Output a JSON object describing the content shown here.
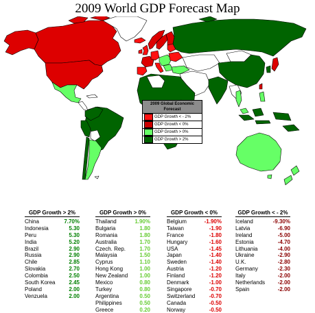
{
  "title": "2009 World GDP Forecast Map",
  "colors": {
    "gt2": "#006400",
    "gt0": "#66ff66",
    "lt0": "#dd0000",
    "ltm2": "#ff1111",
    "nodata": "#ffffff",
    "border": "#000000"
  },
  "legend": {
    "title": "2009 Global Economic Forecast",
    "items": [
      {
        "label": "GDP Growth < - 2%",
        "color": "#ff1111"
      },
      {
        "label": "GDP Growth < 0%",
        "color": "#cc0000"
      },
      {
        "label": "GDP Growth > 0%",
        "color": "#66ff66"
      },
      {
        "label": "GDP Growth > 2%",
        "color": "#006400"
      }
    ]
  },
  "tables": [
    {
      "header": "GDP Growth > 2%",
      "value_color": "#008000",
      "rows": [
        {
          "country": "China",
          "value": "7.70%"
        },
        {
          "country": "Indonesia",
          "value": "5.30"
        },
        {
          "country": "Peru",
          "value": "5.30"
        },
        {
          "country": "India",
          "value": "5.20"
        },
        {
          "country": "Brazil",
          "value": "2.90"
        },
        {
          "country": "Russia",
          "value": "2.90"
        },
        {
          "country": "Chile",
          "value": "2.85"
        },
        {
          "country": "Slovakia",
          "value": "2.70"
        },
        {
          "country": "Colombia",
          "value": "2.50"
        },
        {
          "country": "South Korea",
          "value": "2.45"
        },
        {
          "country": "Poland",
          "value": "2.00"
        },
        {
          "country": "Venzuela",
          "value": "2.00"
        }
      ]
    },
    {
      "header": "GDP Growth > 0%",
      "value_color": "#66cc33",
      "rows": [
        {
          "country": "Thailand",
          "value": "1.90%"
        },
        {
          "country": "Bulgaria",
          "value": "1.80"
        },
        {
          "country": "Romania",
          "value": "1.80"
        },
        {
          "country": "Australia",
          "value": "1.70"
        },
        {
          "country": "Czech. Rep.",
          "value": "1.70"
        },
        {
          "country": "Malaysia",
          "value": "1.50"
        },
        {
          "country": "Cyprus",
          "value": "1.10"
        },
        {
          "country": "Hong Kong",
          "value": "1.00"
        },
        {
          "country": "New Zealand",
          "value": "1.00"
        },
        {
          "country": "Mexico",
          "value": "0.80"
        },
        {
          "country": "Turkey",
          "value": "0.80"
        },
        {
          "country": "Argentina",
          "value": "0.50"
        },
        {
          "country": "Philippines",
          "value": "0.50"
        },
        {
          "country": "Greece",
          "value": "0.20"
        }
      ]
    },
    {
      "header": "GDP Growth < 0%",
      "value_color": "#dd0000",
      "rows": [
        {
          "country": "Belgium",
          "value": "-1.90%"
        },
        {
          "country": "Taiwan",
          "value": "-1.90"
        },
        {
          "country": "France",
          "value": "-1.80"
        },
        {
          "country": "Hungary",
          "value": "-1.60"
        },
        {
          "country": "USA",
          "value": "-1.45"
        },
        {
          "country": "Japan",
          "value": "-1.40"
        },
        {
          "country": "Sweden",
          "value": "-1.40"
        },
        {
          "country": "Austria",
          "value": "-1.20"
        },
        {
          "country": "Finland",
          "value": "-1.20"
        },
        {
          "country": "Denmark",
          "value": "-1.00"
        },
        {
          "country": "Singapore",
          "value": "-0.70"
        },
        {
          "country": "Switzerland",
          "value": "-0.70"
        },
        {
          "country": "Canada",
          "value": "-0.50"
        },
        {
          "country": "Norway",
          "value": "-0.50"
        }
      ]
    },
    {
      "header": "GDP Growth < - 2%",
      "value_color": "#8b0000",
      "rows": [
        {
          "country": "Iceland",
          "value": "-9.30%"
        },
        {
          "country": "Latvia",
          "value": "-6.90"
        },
        {
          "country": "Ireland",
          "value": "-5.00"
        },
        {
          "country": "Estonia",
          "value": "-4.70"
        },
        {
          "country": "Lithuania",
          "value": "-4.00"
        },
        {
          "country": "Ukraine",
          "value": "-2.90"
        },
        {
          "country": "U.K.",
          "value": "-2.80"
        },
        {
          "country": "Germany",
          "value": "-2.30"
        },
        {
          "country": "Italy",
          "value": "-2.00"
        },
        {
          "country": "Netherlands",
          "value": "-2.00"
        },
        {
          "country": "Spain",
          "value": "-2.00"
        }
      ]
    }
  ]
}
